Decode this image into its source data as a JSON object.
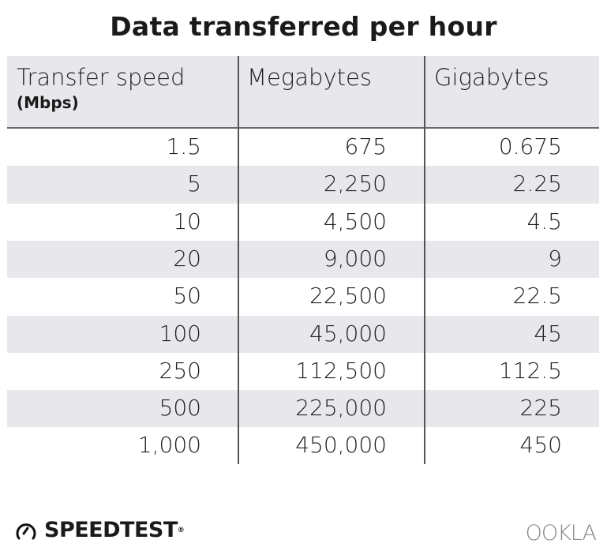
{
  "chart_data": {
    "type": "table",
    "title": "Data transferred per hour",
    "columns": [
      {
        "label": "Transfer speed",
        "sublabel": "(Mbps)"
      },
      {
        "label": "Megabytes"
      },
      {
        "label": "Gigabytes"
      }
    ],
    "rows": [
      [
        "1.5",
        "675",
        "0.675"
      ],
      [
        "5",
        "2,250",
        "2.25"
      ],
      [
        "10",
        "4,500",
        "4.5"
      ],
      [
        "20",
        "9,000",
        "9"
      ],
      [
        "50",
        "22,500",
        "22.5"
      ],
      [
        "100",
        "45,000",
        "45"
      ],
      [
        "250",
        "112,500",
        "112.5"
      ],
      [
        "500",
        "225,000",
        "225"
      ],
      [
        "1,000",
        "450,000",
        "450"
      ]
    ]
  },
  "branding": {
    "speedtest": "SPEEDTEST",
    "speedtest_mark": "®",
    "ookla": "OOKLA",
    "icon": "speedometer-icon"
  },
  "colors": {
    "stripe": "#e8e8ec",
    "divider": "#555555",
    "logo_gray": "#888888"
  }
}
